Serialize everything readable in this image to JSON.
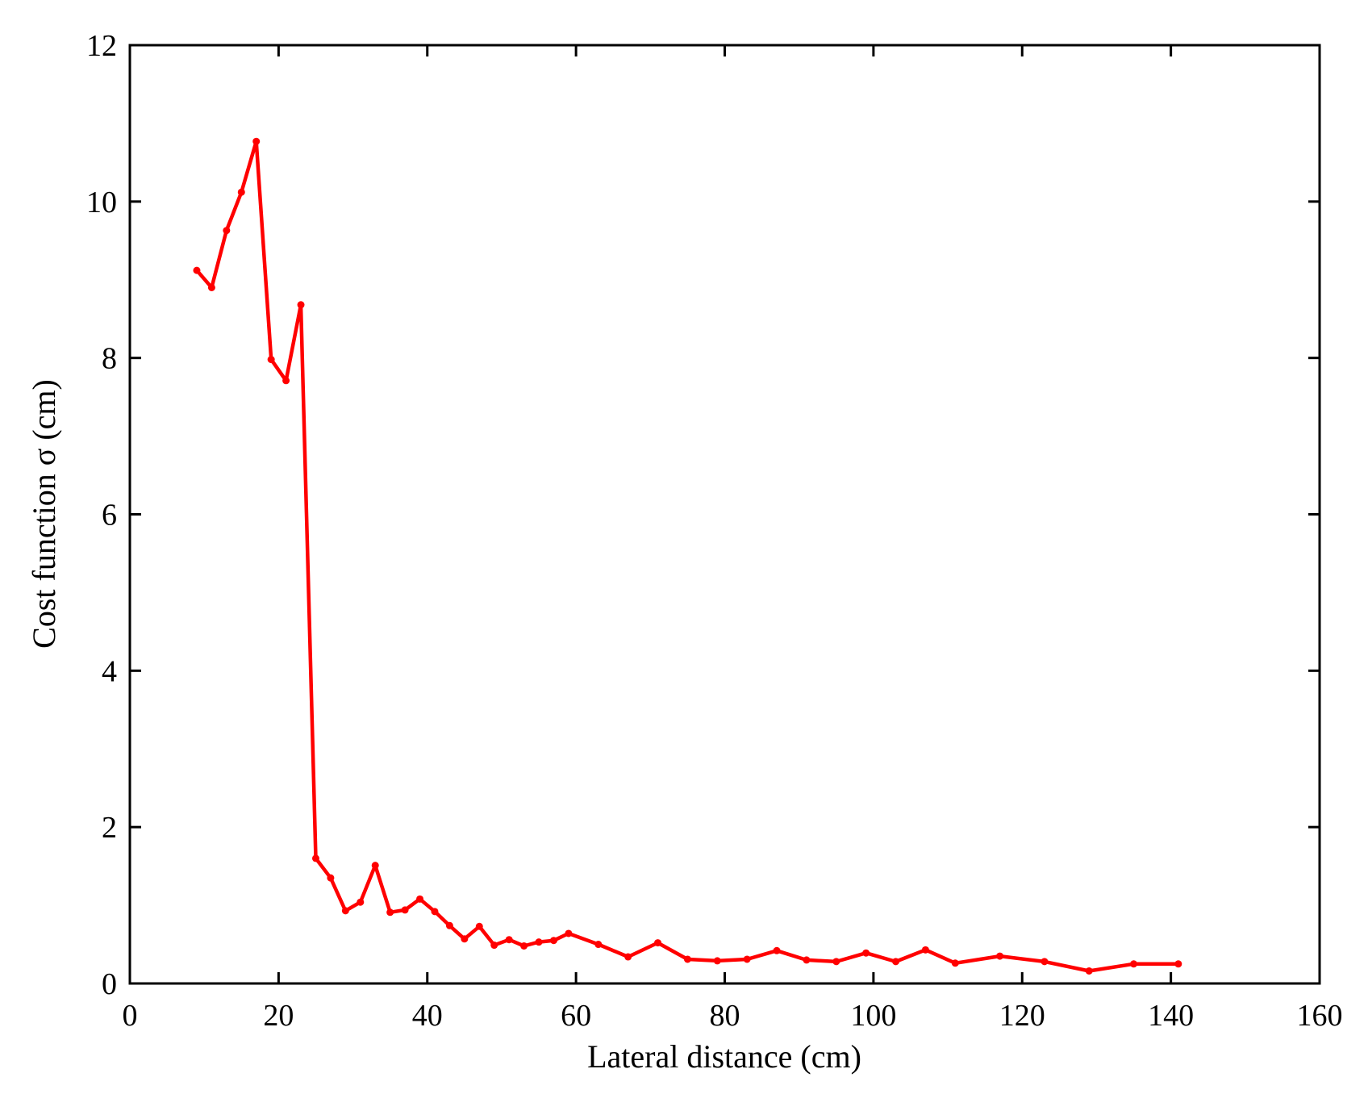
{
  "chart_data": {
    "type": "line",
    "title": "",
    "xlabel": "Lateral distance (cm)",
    "ylabel": "Cost function σ (cm)",
    "xlim": [
      0,
      160
    ],
    "ylim": [
      0,
      12
    ],
    "xticks": [
      0,
      20,
      40,
      60,
      80,
      100,
      120,
      140,
      160
    ],
    "yticks": [
      0,
      2,
      4,
      6,
      8,
      10,
      12
    ],
    "grid": false,
    "legend": "none",
    "series": [
      {
        "color": "#ff0000",
        "marker": "dot",
        "x": [
          9,
          11,
          13,
          15,
          17,
          19,
          21,
          23,
          25,
          27,
          29,
          31,
          33,
          35,
          37,
          39,
          41,
          43,
          45,
          47,
          49,
          51,
          53,
          55,
          57,
          59,
          63,
          67,
          71,
          75,
          79,
          83,
          87,
          91,
          95,
          99,
          103,
          107,
          111,
          117,
          123,
          129,
          135,
          141
        ],
        "y": [
          9.12,
          8.9,
          9.63,
          10.12,
          10.77,
          7.98,
          7.71,
          8.68,
          1.6,
          1.35,
          0.93,
          1.04,
          1.51,
          0.91,
          0.94,
          1.08,
          0.92,
          0.74,
          0.57,
          0.73,
          0.49,
          0.56,
          0.48,
          0.53,
          0.55,
          0.64,
          0.5,
          0.34,
          0.52,
          0.31,
          0.29,
          0.31,
          0.42,
          0.3,
          0.28,
          0.39,
          0.28,
          0.43,
          0.26,
          0.35,
          0.28,
          0.16,
          0.25,
          0.25
        ]
      }
    ]
  }
}
